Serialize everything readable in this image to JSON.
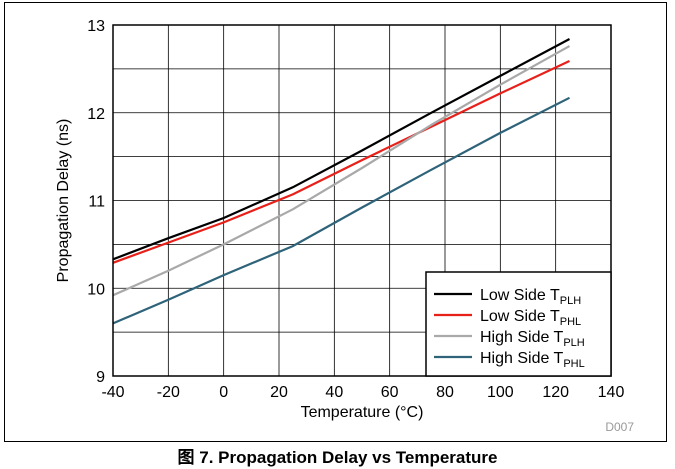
{
  "figure_id": "D007",
  "caption": "图 7. Propagation Delay vs Temperature",
  "chart_data": {
    "type": "line",
    "xlabel": "Temperature (°C)",
    "ylabel": "Propagation Delay (ns)",
    "xlim": [
      -40,
      140
    ],
    "ylim": [
      9,
      13
    ],
    "xticks": [
      -40,
      -20,
      0,
      20,
      40,
      60,
      80,
      100,
      120,
      140
    ],
    "yticks": [
      9,
      10,
      11,
      12,
      13
    ],
    "grid": true,
    "legend_position": "bottom-right",
    "x": [
      -40,
      -20,
      0,
      25,
      50,
      75,
      100,
      125
    ],
    "series": [
      {
        "name_main": "Low Side T",
        "name_sub": "PLH",
        "color": "#000000",
        "values": [
          10.33,
          10.57,
          10.8,
          11.15,
          11.57,
          12.0,
          12.42,
          12.84
        ]
      },
      {
        "name_main": "Low Side T",
        "name_sub": "PHL",
        "color": "#e8201a",
        "values": [
          10.29,
          10.52,
          10.75,
          11.07,
          11.46,
          11.84,
          12.22,
          12.59
        ]
      },
      {
        "name_main": "High Side T",
        "name_sub": "PLH",
        "color": "#a9a9a9",
        "values": [
          9.92,
          10.2,
          10.5,
          10.9,
          11.37,
          11.86,
          12.32,
          12.76
        ]
      },
      {
        "name_main": "High Side T",
        "name_sub": "PHL",
        "color": "#2e6379",
        "values": [
          9.6,
          9.87,
          10.15,
          10.48,
          10.92,
          11.35,
          11.77,
          12.17
        ]
      }
    ]
  }
}
